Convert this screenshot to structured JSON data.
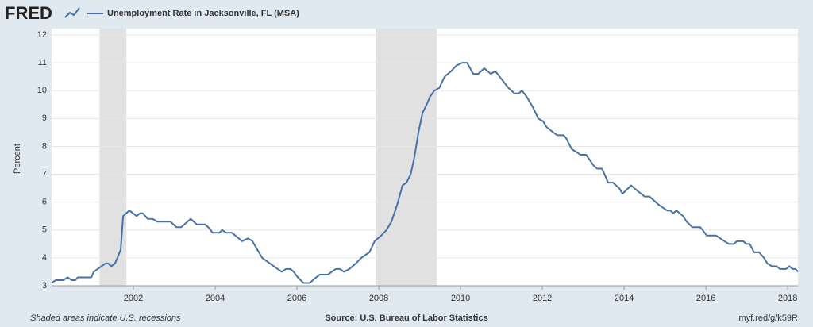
{
  "chart_data": {
    "type": "line",
    "logo": "FRED",
    "ylabel": "Percent",
    "footer_left": "Shaded areas indicate U.S. recessions",
    "source": "Source: U.S. Bureau of Labor Statistics",
    "link": "myf.red/g/k59R",
    "x": [
      2000.0,
      2000.1,
      2000.29,
      2000.39,
      2000.49,
      2000.58,
      2000.64,
      2000.97,
      2001.03,
      2001.22,
      2001.32,
      2001.38,
      2001.46,
      2001.55,
      2001.61,
      2001.69,
      2001.75,
      2001.9,
      2002.08,
      2002.16,
      2002.23,
      2002.35,
      2002.47,
      2002.58,
      2002.91,
      2003.05,
      2003.17,
      2003.4,
      2003.55,
      2003.75,
      2003.83,
      2003.94,
      2004.1,
      2004.17,
      2004.27,
      2004.41,
      2004.66,
      2004.8,
      2004.91,
      2005.03,
      2005.15,
      2005.34,
      2005.53,
      2005.63,
      2005.73,
      2005.84,
      2005.92,
      2006.02,
      2006.16,
      2006.31,
      2006.47,
      2006.56,
      2006.76,
      2006.85,
      2006.95,
      2007.05,
      2007.15,
      2007.28,
      2007.44,
      2007.57,
      2007.77,
      2007.9,
      2008.06,
      2008.19,
      2008.31,
      2008.45,
      2008.58,
      2008.68,
      2008.78,
      2008.87,
      2008.97,
      2009.07,
      2009.17,
      2009.26,
      2009.36,
      2009.48,
      2009.61,
      2009.77,
      2009.9,
      2010.04,
      2010.16,
      2010.31,
      2010.43,
      2010.58,
      2010.74,
      2010.85,
      2011.01,
      2011.17,
      2011.32,
      2011.42,
      2011.5,
      2011.61,
      2011.77,
      2011.9,
      2012.02,
      2012.1,
      2012.27,
      2012.37,
      2012.52,
      2012.58,
      2012.72,
      2012.83,
      2012.93,
      2013.07,
      2013.26,
      2013.34,
      2013.46,
      2013.61,
      2013.73,
      2013.88,
      2013.96,
      2014.17,
      2014.33,
      2014.5,
      2014.62,
      2014.85,
      2015.05,
      2015.13,
      2015.2,
      2015.28,
      2015.44,
      2015.53,
      2015.67,
      2015.86,
      2015.92,
      2016.02,
      2016.25,
      2016.45,
      2016.56,
      2016.68,
      2016.76,
      2016.91,
      2016.99,
      2017.07,
      2017.18,
      2017.3,
      2017.42,
      2017.5,
      2017.61,
      2017.73,
      2017.81,
      2017.96,
      2018.04,
      2018.12,
      2018.19,
      2018.25
    ],
    "series": [
      {
        "name": "Unemployment Rate in Jacksonville, FL (MSA)",
        "color": "#4572a7",
        "values": [
          3.1,
          3.2,
          3.2,
          3.3,
          3.2,
          3.2,
          3.3,
          3.3,
          3.5,
          3.7,
          3.8,
          3.8,
          3.7,
          3.8,
          4.0,
          4.3,
          5.5,
          5.7,
          5.5,
          5.6,
          5.6,
          5.4,
          5.4,
          5.3,
          5.3,
          5.1,
          5.1,
          5.4,
          5.2,
          5.2,
          5.1,
          4.9,
          4.9,
          5.0,
          4.9,
          4.9,
          4.6,
          4.7,
          4.6,
          4.3,
          4.0,
          3.8,
          3.6,
          3.5,
          3.6,
          3.6,
          3.5,
          3.3,
          3.1,
          3.1,
          3.3,
          3.4,
          3.4,
          3.5,
          3.6,
          3.6,
          3.5,
          3.6,
          3.8,
          4.0,
          4.2,
          4.6,
          4.8,
          5.0,
          5.3,
          5.9,
          6.6,
          6.7,
          7.0,
          7.6,
          8.5,
          9.2,
          9.5,
          9.8,
          10.0,
          10.1,
          10.5,
          10.7,
          10.9,
          11.0,
          11.0,
          10.6,
          10.6,
          10.8,
          10.6,
          10.7,
          10.4,
          10.1,
          9.9,
          9.9,
          10.0,
          9.8,
          9.4,
          9.0,
          8.9,
          8.7,
          8.5,
          8.4,
          8.4,
          8.3,
          7.9,
          7.8,
          7.7,
          7.7,
          7.3,
          7.2,
          7.2,
          6.7,
          6.7,
          6.5,
          6.3,
          6.6,
          6.4,
          6.2,
          6.2,
          5.9,
          5.7,
          5.7,
          5.6,
          5.7,
          5.5,
          5.3,
          5.1,
          5.1,
          5.0,
          4.8,
          4.8,
          4.6,
          4.5,
          4.5,
          4.6,
          4.6,
          4.5,
          4.5,
          4.2,
          4.2,
          4.0,
          3.8,
          3.7,
          3.7,
          3.6,
          3.6,
          3.7,
          3.6,
          3.6,
          3.5
        ]
      }
    ],
    "recessions": [
      [
        2001.17,
        2001.83
      ],
      [
        2007.92,
        2009.42
      ]
    ],
    "recession_color": "#e1e1e1",
    "xlim": [
      2000.0,
      2018.25
    ],
    "xticks": [
      2002,
      2004,
      2006,
      2008,
      2010,
      2012,
      2014,
      2016,
      2018
    ],
    "ylim": [
      3,
      12
    ],
    "yticks": [
      3,
      4,
      5,
      6,
      7,
      8,
      9,
      10,
      11,
      12
    ],
    "grid": true
  }
}
